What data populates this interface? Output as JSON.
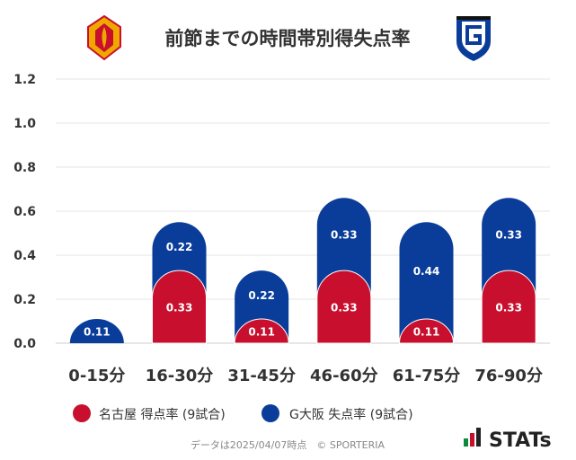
{
  "colors": {
    "home": "#c8102e",
    "away": "#0a3d9a",
    "grid": "#e5e5e5",
    "text": "#333333"
  },
  "chart_data": {
    "type": "bar",
    "title": "前節までの時間帯別得失点率",
    "categories": [
      "0-15分",
      "16-30分",
      "31-45分",
      "46-60分",
      "61-75分",
      "76-90分"
    ],
    "series": [
      {
        "name": "名古屋 得点率 (9試合)",
        "values": [
          0.0,
          0.33,
          0.11,
          0.33,
          0.11,
          0.33
        ]
      },
      {
        "name": "G大阪 失点率 (9試合)",
        "values": [
          0.11,
          0.22,
          0.22,
          0.33,
          0.44,
          0.33
        ]
      }
    ],
    "series_labels": [
      [
        "",
        "0.33",
        "0.11",
        "0.33",
        "0.11",
        "0.33"
      ],
      [
        "0.11",
        "0.22",
        "0.22",
        "0.33",
        "0.44",
        "0.33"
      ]
    ],
    "stacked": true,
    "yticks": [
      "0.0",
      "0.2",
      "0.4",
      "0.6",
      "0.8",
      "1.0",
      "1.2"
    ],
    "ylim": [
      0,
      1.2
    ],
    "grid": true,
    "legend": "bottom"
  },
  "footer": {
    "note": "データは2025/04/07時点　© SPORTERIA",
    "brand": "STATs"
  },
  "icons": {
    "home_logo": "nagoya-grampus-crest-icon",
    "away_logo": "gamba-osaka-crest-icon"
  }
}
